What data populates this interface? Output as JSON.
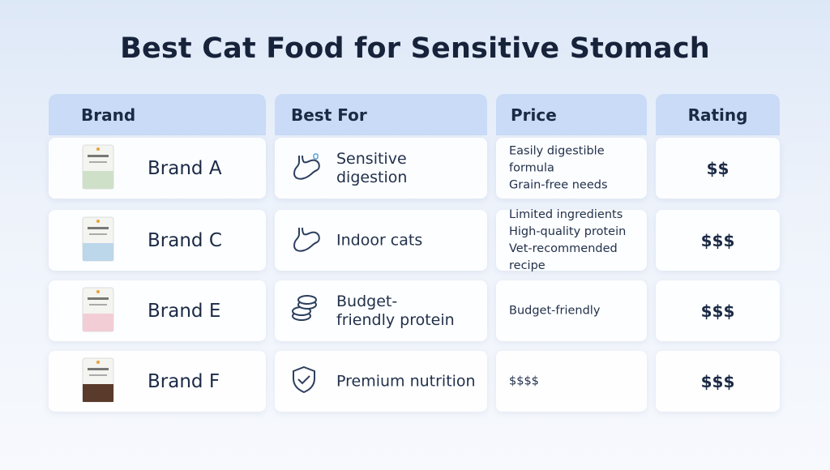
{
  "title": "Best Cat Food for Sensitive Stomach",
  "table": {
    "header": [
      "Brand",
      "Best For",
      "Price",
      "Rating"
    ],
    "rows": [
      {
        "brand": "Brand A",
        "best_for": "Sensitive digestion",
        "price": [
          "Easily digestible formula",
          "Grain-free needs"
        ],
        "rating": "$$"
      },
      {
        "brand": "Brand C",
        "best_for": "Indoor cats",
        "price": [
          "Limited ingredients",
          "High-quality protein",
          "Vet-recommended recipe"
        ],
        "rating": "$$$"
      },
      {
        "brand": "Brand E",
        "best_for": "Budget-friendly protein",
        "price": [
          "Budget-friendly"
        ],
        "rating": "$$$"
      },
      {
        "brand": "Brand F",
        "best_for": "Premium nutrition",
        "price": [
          "$$$$"
        ],
        "rating": "$$$"
      }
    ]
  }
}
